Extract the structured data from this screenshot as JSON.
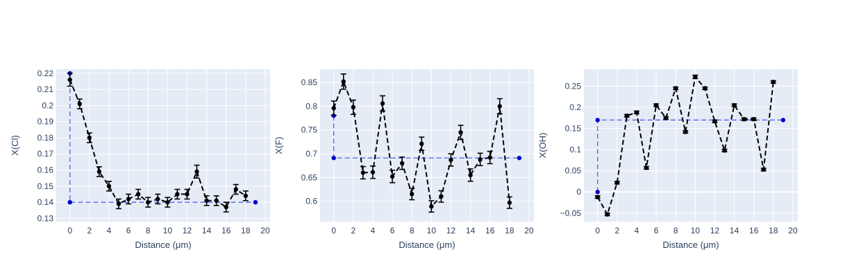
{
  "chart_data": [
    {
      "type": "scatter",
      "xlabel": "Distance (μm)",
      "ylabel": "X(Cl)",
      "xlim": [
        -1.4,
        20.5
      ],
      "ylim": [
        0.128,
        0.2225
      ],
      "xticks": [
        0,
        2,
        4,
        6,
        8,
        10,
        12,
        14,
        16,
        18,
        20
      ],
      "yticks": [
        0.13,
        0.14,
        0.15,
        0.16,
        0.17,
        0.18,
        0.19,
        0.2,
        0.21,
        0.22
      ],
      "ytick_labels": [
        "0.13",
        "0.14",
        "0.15",
        "0.16",
        "0.17",
        "0.18",
        "0.19",
        "0.2",
        "0.21",
        "0.22"
      ],
      "grid": true,
      "series": [
        {
          "style": "black dashed line with markers and error bars",
          "x": [
            0,
            1,
            2,
            3,
            4,
            5,
            6,
            7,
            8,
            9,
            10,
            11,
            12,
            13,
            14,
            15,
            16,
            17,
            18
          ],
          "y": [
            0.216,
            0.201,
            0.18,
            0.159,
            0.15,
            0.139,
            0.142,
            0.145,
            0.14,
            0.142,
            0.14,
            0.145,
            0.145,
            0.159,
            0.141,
            0.141,
            0.137,
            0.148,
            0.144
          ],
          "error": [
            0.004,
            0.003,
            0.003,
            0.003,
            0.003,
            0.003,
            0.003,
            0.003,
            0.003,
            0.003,
            0.003,
            0.003,
            0.003,
            0.004,
            0.003,
            0.003,
            0.003,
            0.003,
            0.003
          ]
        },
        {
          "style": "blue dashed guide line",
          "x": [
            0,
            0,
            19
          ],
          "y": [
            0.22,
            0.14,
            0.14
          ]
        }
      ]
    },
    {
      "type": "scatter",
      "xlabel": "Distance (μm)",
      "ylabel": "X(F)",
      "xlim": [
        -1.4,
        20.5
      ],
      "ylim": [
        0.557,
        0.878
      ],
      "xticks": [
        0,
        2,
        4,
        6,
        8,
        10,
        12,
        14,
        16,
        18,
        20
      ],
      "yticks": [
        0.6,
        0.65,
        0.7,
        0.75,
        0.8,
        0.85
      ],
      "ytick_labels": [
        "0.6",
        "0.65",
        "0.7",
        "0.75",
        "0.8",
        "0.85"
      ],
      "grid": true,
      "series": [
        {
          "style": "black dashed line with markers and error bars",
          "x": [
            0,
            1,
            2,
            3,
            4,
            5,
            6,
            7,
            8,
            9,
            10,
            11,
            12,
            13,
            14,
            15,
            16,
            17,
            18
          ],
          "y": [
            0.796,
            0.852,
            0.798,
            0.66,
            0.661,
            0.806,
            0.652,
            0.68,
            0.615,
            0.721,
            0.589,
            0.61,
            0.687,
            0.745,
            0.655,
            0.688,
            0.692,
            0.8,
            0.597
          ],
          "error": [
            0.015,
            0.016,
            0.015,
            0.013,
            0.013,
            0.016,
            0.013,
            0.013,
            0.012,
            0.014,
            0.012,
            0.012,
            0.013,
            0.015,
            0.013,
            0.013,
            0.013,
            0.016,
            0.012
          ]
        },
        {
          "style": "blue dashed guide line",
          "x": [
            0,
            0,
            19
          ],
          "y": [
            0.78,
            0.691,
            0.691
          ]
        }
      ]
    },
    {
      "type": "scatter",
      "xlabel": "Distance (μm)",
      "ylabel": "X(OH)",
      "xlim": [
        -1.4,
        20.5
      ],
      "ylim": [
        -0.07,
        0.29
      ],
      "xticks": [
        0,
        2,
        4,
        6,
        8,
        10,
        12,
        14,
        16,
        18,
        20
      ],
      "yticks": [
        -0.05,
        0,
        0.05,
        0.1,
        0.15,
        0.2,
        0.25
      ],
      "ytick_labels": [
        "−0.05",
        "0",
        "0.05",
        "0.1",
        "0.15",
        "0.2",
        "0.25"
      ],
      "grid": true,
      "series": [
        {
          "style": "black dashed line with markers and error bars",
          "x": [
            0,
            1,
            2,
            3,
            4,
            5,
            6,
            7,
            8,
            9,
            10,
            11,
            12,
            13,
            14,
            15,
            16,
            17,
            18
          ],
          "y": [
            -0.012,
            -0.053,
            0.022,
            0.18,
            0.188,
            0.057,
            0.205,
            0.175,
            0.245,
            0.142,
            0.272,
            0.245,
            0.167,
            0.098,
            0.205,
            0.172,
            0.172,
            0.053,
            0.26
          ],
          "error": [
            0.003,
            0.003,
            0.003,
            0.003,
            0.003,
            0.003,
            0.003,
            0.003,
            0.003,
            0.003,
            0.004,
            0.003,
            0.003,
            0.003,
            0.003,
            0.003,
            0.003,
            0.003,
            0.003
          ]
        },
        {
          "style": "blue dashed guide line",
          "x": [
            0,
            0,
            19
          ],
          "y": [
            0.0,
            0.17,
            0.17
          ]
        }
      ]
    }
  ],
  "colors": {
    "plot_background": "#E5ECF6",
    "grid": "#ffffff",
    "data_series": "#000000",
    "guide_series": "#0000CC",
    "guide_line": "#4f5ff0",
    "text": "#2a3f5f"
  }
}
